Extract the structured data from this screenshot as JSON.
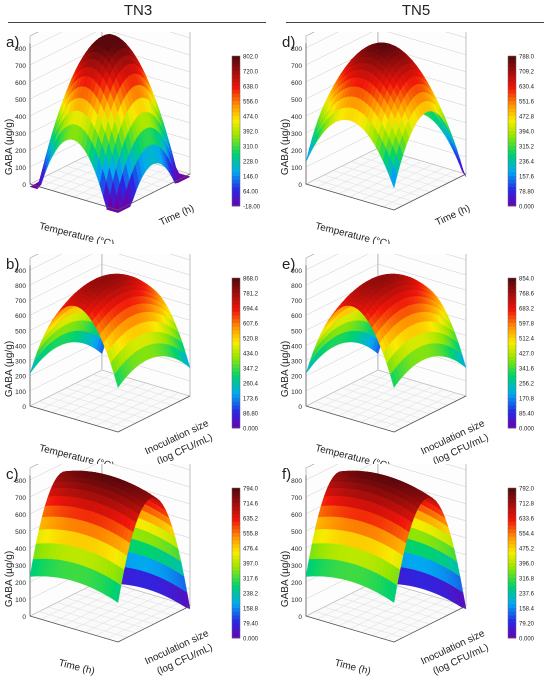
{
  "columns": [
    "TN3",
    "TN5"
  ],
  "chart_data": [
    {
      "id": "a",
      "type": "surface",
      "panel_label": "a)",
      "zlabel": "GABA (µg/g)",
      "xlabel": "Temperature (°C)",
      "ylabel": "Time (h)",
      "ylabel2": "",
      "zticks": [
        "0",
        "100",
        "200",
        "300",
        "400",
        "500",
        "600",
        "700",
        "800"
      ],
      "colorbar": [
        "802.0",
        "720.0",
        "638.0",
        "556.0",
        "474.0",
        "392.0",
        "310.0",
        "228.0",
        "146.0",
        "64.00",
        "-18.00"
      ],
      "zmin": -18,
      "zmax": 802,
      "shape": "a"
    },
    {
      "id": "b",
      "type": "surface",
      "panel_label": "b)",
      "zlabel": "GABA (µg/g)",
      "xlabel": "Temperature (°C)",
      "ylabel": "Inoculation size",
      "ylabel2": "(log CFU/mL)",
      "zticks": [
        "0",
        "100",
        "200",
        "300",
        "400",
        "500",
        "600",
        "700",
        "800",
        "900"
      ],
      "colorbar": [
        "868.0",
        "781.2",
        "694.4",
        "607.6",
        "520.8",
        "434.0",
        "347.2",
        "260.4",
        "173.6",
        "86.80",
        "0.000"
      ],
      "zmin": 0,
      "zmax": 868,
      "shape": "b"
    },
    {
      "id": "c",
      "type": "surface",
      "panel_label": "c)",
      "zlabel": "GABA (µg/g)",
      "xlabel": "Time (h)",
      "ylabel": "Inoculation size",
      "ylabel2": "(log CFU/mL)",
      "zticks": [
        "0",
        "100",
        "200",
        "300",
        "400",
        "500",
        "600",
        "700",
        "800"
      ],
      "colorbar": [
        "794.0",
        "714.6",
        "635.2",
        "555.8",
        "476.4",
        "397.0",
        "317.6",
        "238.2",
        "158.8",
        "79.40",
        "0.000"
      ],
      "zmin": 0,
      "zmax": 794,
      "shape": "c"
    },
    {
      "id": "d",
      "type": "surface",
      "panel_label": "d)",
      "zlabel": "GABA (µg/g)",
      "xlabel": "Temperature (°C)",
      "ylabel": "Time (h)",
      "ylabel2": "",
      "zticks": [
        "0",
        "100",
        "200",
        "300",
        "400",
        "500",
        "600",
        "700",
        "800"
      ],
      "colorbar": [
        "788.0",
        "709.2",
        "630.4",
        "551.6",
        "472.8",
        "394.0",
        "315.2",
        "236.4",
        "157.6",
        "78.80",
        "0.000"
      ],
      "zmin": 0,
      "zmax": 788,
      "shape": "d"
    },
    {
      "id": "e",
      "type": "surface",
      "panel_label": "e)",
      "zlabel": "GABA (µg/g)",
      "xlabel": "Temperature (°C)",
      "ylabel": "Inoculation size",
      "ylabel2": "(log CFU/mL)",
      "zticks": [
        "0",
        "100",
        "200",
        "300",
        "400",
        "500",
        "600",
        "700",
        "800",
        "900"
      ],
      "colorbar": [
        "854.0",
        "768.6",
        "683.2",
        "597.8",
        "512.4",
        "427.0",
        "341.6",
        "256.2",
        "170.8",
        "85.40",
        "0.000"
      ],
      "zmin": 0,
      "zmax": 854,
      "shape": "b"
    },
    {
      "id": "f",
      "type": "surface",
      "panel_label": "f)",
      "zlabel": "GABA (µg/g)",
      "xlabel": "Time (h)",
      "ylabel": "Inoculation size",
      "ylabel2": "(log CFU/mL)",
      "zticks": [
        "0",
        "100",
        "200",
        "300",
        "400",
        "500",
        "600",
        "700",
        "800"
      ],
      "colorbar": [
        "792.0",
        "712.8",
        "633.6",
        "554.4",
        "475.2",
        "396.0",
        "316.8",
        "237.6",
        "158.4",
        "79.20",
        "0.000"
      ],
      "zmin": 0,
      "zmax": 792,
      "shape": "c"
    }
  ]
}
